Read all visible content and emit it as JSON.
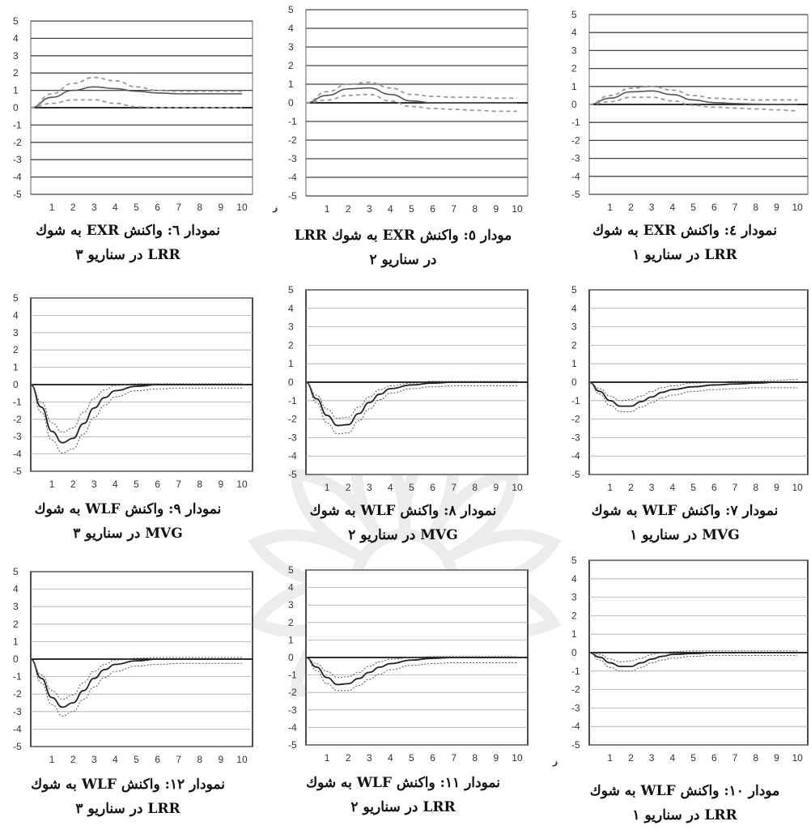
{
  "chart_data": [
    {
      "id": "p4",
      "type": "line",
      "style": "exr",
      "caption": [
        "نمودار ٤: واكنش EXR به شوك",
        "LRR در سناريو ١"
      ],
      "xticks": [
        1,
        2,
        3,
        4,
        5,
        6,
        7,
        8,
        9,
        10
      ],
      "ylim": [
        -5,
        5
      ],
      "yticks": [
        5,
        4,
        3,
        2,
        1,
        0,
        -1,
        -2,
        -3,
        -4,
        -5
      ],
      "x": [
        0,
        1,
        2,
        3,
        4,
        5,
        6,
        7,
        8,
        9,
        10
      ],
      "series": [
        {
          "role": "response",
          "values": [
            0,
            0.35,
            0.7,
            0.75,
            0.55,
            0.25,
            0.1,
            0.05,
            0.02,
            0,
            0
          ]
        },
        {
          "role": "upper",
          "values": [
            0,
            0.5,
            0.9,
            1.0,
            0.8,
            0.5,
            0.35,
            0.3,
            0.25,
            0.25,
            0.25
          ]
        },
        {
          "role": "lower",
          "values": [
            0,
            0.15,
            0.4,
            0.4,
            0.2,
            -0.05,
            -0.15,
            -0.2,
            -0.25,
            -0.3,
            -0.35
          ]
        }
      ]
    },
    {
      "id": "p5",
      "type": "line",
      "style": "exr",
      "caption": [
        "مودار ٥: واكنش EXR به شوك LRR",
        "در سناريو ٢"
      ],
      "xticks": [
        1,
        2,
        3,
        4,
        5,
        6,
        7,
        8,
        9,
        10
      ],
      "ylim": [
        -5,
        5
      ],
      "yticks": [
        5,
        4,
        3,
        2,
        1,
        0,
        -1,
        -2,
        -3,
        -4,
        -5
      ],
      "x": [
        0,
        1,
        2,
        3,
        4,
        5,
        6,
        7,
        8,
        9,
        10
      ],
      "series": [
        {
          "role": "response",
          "values": [
            0,
            0.4,
            0.75,
            0.8,
            0.45,
            0.1,
            0.0,
            0.0,
            0.0,
            0.0,
            0.0
          ]
        },
        {
          "role": "upper",
          "values": [
            0,
            0.6,
            1.0,
            1.1,
            0.8,
            0.45,
            0.35,
            0.3,
            0.3,
            0.25,
            0.25
          ]
        },
        {
          "role": "lower",
          "values": [
            0,
            0.15,
            0.4,
            0.45,
            0.1,
            -0.2,
            -0.3,
            -0.35,
            -0.4,
            -0.45,
            -0.45
          ]
        }
      ]
    },
    {
      "id": "p6",
      "type": "line",
      "style": "exr",
      "caption": [
        "نمودار ٦: واكنش EXR به شوك",
        "LRR در سناريو ٣"
      ],
      "xticks": [
        1,
        2,
        3,
        4,
        5,
        6,
        7,
        8,
        9,
        10
      ],
      "ylim": [
        -5,
        5
      ],
      "yticks": [
        5,
        4,
        3,
        2,
        1,
        0,
        -1,
        -2,
        -3,
        -4,
        -5
      ],
      "x": [
        0,
        1,
        2,
        3,
        4,
        5,
        6,
        7,
        8,
        9,
        10
      ],
      "series": [
        {
          "role": "response",
          "values": [
            0,
            0.6,
            1.0,
            1.2,
            1.1,
            0.95,
            0.85,
            0.8,
            0.8,
            0.8,
            0.8
          ]
        },
        {
          "role": "upper",
          "values": [
            0,
            0.8,
            1.4,
            1.75,
            1.55,
            1.2,
            1.0,
            0.95,
            0.95,
            0.95,
            0.95
          ]
        },
        {
          "role": "lower",
          "values": [
            0,
            0.25,
            0.45,
            0.45,
            0.25,
            0.05,
            0,
            0,
            0,
            0,
            0
          ]
        }
      ]
    },
    {
      "id": "p7",
      "type": "line",
      "style": "wlf",
      "caption": [
        "نمودار ٧: واكنش WLF به شوك",
        "MVG در سناريو ١"
      ],
      "xticks": [
        1,
        2,
        3,
        4,
        5,
        6,
        7,
        8,
        9,
        10
      ],
      "ylim": [
        -5,
        5
      ],
      "yticks": [
        5,
        4,
        3,
        2,
        1,
        0,
        -1,
        -2,
        -3,
        -4,
        -5
      ],
      "x": [
        0,
        0.5,
        1,
        1.5,
        2,
        2.5,
        3,
        3.5,
        4,
        5,
        6,
        7,
        8,
        9,
        10
      ],
      "series": [
        {
          "role": "response",
          "values": [
            0,
            -0.5,
            -1.0,
            -1.3,
            -1.3,
            -1.05,
            -0.8,
            -0.55,
            -0.4,
            -0.25,
            -0.15,
            -0.1,
            -0.05,
            0,
            0
          ]
        },
        {
          "role": "upper",
          "values": [
            0,
            -0.35,
            -0.75,
            -1.0,
            -0.95,
            -0.75,
            -0.5,
            -0.3,
            -0.2,
            -0.05,
            0,
            0.05,
            0.05,
            0.1,
            0.15
          ]
        },
        {
          "role": "lower",
          "values": [
            0,
            -0.65,
            -1.25,
            -1.6,
            -1.6,
            -1.35,
            -1.1,
            -0.85,
            -0.7,
            -0.5,
            -0.4,
            -0.35,
            -0.3,
            -0.3,
            -0.3
          ]
        }
      ]
    },
    {
      "id": "p8",
      "type": "line",
      "style": "wlf",
      "caption": [
        "نمودار ٨: واكنش WLF به شوك",
        "MVG در سناريو ٢"
      ],
      "xticks": [
        1,
        2,
        3,
        4,
        5,
        6,
        7,
        8,
        9,
        10
      ],
      "ylim": [
        -5,
        5
      ],
      "yticks": [
        5,
        4,
        3,
        2,
        1,
        0,
        -1,
        -2,
        -3,
        -4,
        -5
      ],
      "x": [
        0,
        0.5,
        1,
        1.5,
        2,
        2.5,
        3,
        3.5,
        4,
        5,
        6,
        7,
        8,
        9,
        10
      ],
      "series": [
        {
          "role": "response",
          "values": [
            0,
            -0.9,
            -1.8,
            -2.35,
            -2.3,
            -1.7,
            -1.1,
            -0.65,
            -0.35,
            -0.15,
            -0.05,
            0,
            0,
            0,
            0
          ]
        },
        {
          "role": "upper",
          "values": [
            0,
            -0.7,
            -1.45,
            -1.95,
            -1.9,
            -1.35,
            -0.8,
            -0.4,
            -0.2,
            -0.05,
            0.05,
            0.05,
            0.05,
            0.05,
            0.05
          ]
        },
        {
          "role": "lower",
          "values": [
            0,
            -1.1,
            -2.2,
            -2.8,
            -2.75,
            -2.1,
            -1.45,
            -0.95,
            -0.6,
            -0.35,
            -0.25,
            -0.2,
            -0.2,
            -0.2,
            -0.2
          ]
        }
      ]
    },
    {
      "id": "p9",
      "type": "line",
      "style": "wlf",
      "caption": [
        "نمودار ٩: واكنش WLF به شوك",
        "MVG در سناريو ٣"
      ],
      "xticks": [
        1,
        2,
        3,
        4,
        5,
        6,
        7,
        8,
        9,
        10
      ],
      "ylim": [
        -5,
        5
      ],
      "yticks": [
        5,
        4,
        3,
        2,
        1,
        0,
        -1,
        -2,
        -3,
        -4,
        -5
      ],
      "x": [
        0,
        0.5,
        1,
        1.5,
        2,
        2.5,
        3,
        3.5,
        4,
        5,
        6,
        7,
        8,
        9,
        10
      ],
      "series": [
        {
          "role": "response",
          "values": [
            0,
            -1.3,
            -2.7,
            -3.35,
            -3.1,
            -2.25,
            -1.35,
            -0.75,
            -0.35,
            -0.1,
            0,
            0,
            0,
            0,
            0
          ]
        },
        {
          "role": "upper",
          "values": [
            0,
            -1.0,
            -2.2,
            -2.75,
            -2.5,
            -1.6,
            -0.8,
            -0.3,
            -0.05,
            0.05,
            0.05,
            0.05,
            0.05,
            0.05,
            0.05
          ]
        },
        {
          "role": "lower",
          "values": [
            0,
            -1.6,
            -3.2,
            -3.95,
            -3.7,
            -2.85,
            -1.9,
            -1.2,
            -0.7,
            -0.35,
            -0.25,
            -0.2,
            -0.2,
            -0.2,
            -0.2
          ]
        }
      ]
    },
    {
      "id": "p10",
      "type": "line",
      "style": "wlf",
      "caption": [
        "مودار ١٠: واكنش WLF به شوك",
        "LRR در سناريو ١"
      ],
      "xticks": [
        1,
        2,
        3,
        4,
        5,
        6,
        7,
        8,
        9,
        10
      ],
      "ylim": [
        -5,
        5
      ],
      "yticks": [
        5,
        4,
        3,
        2,
        1,
        0,
        -1,
        -2,
        -3,
        -4,
        -5
      ],
      "x": [
        0,
        0.5,
        1,
        1.5,
        2,
        2.5,
        3,
        3.5,
        4,
        5,
        6,
        7,
        8,
        9,
        10
      ],
      "series": [
        {
          "role": "response",
          "values": [
            0,
            -0.25,
            -0.55,
            -0.75,
            -0.75,
            -0.55,
            -0.35,
            -0.2,
            -0.1,
            -0.05,
            0,
            0,
            0,
            0,
            0
          ]
        },
        {
          "role": "upper",
          "values": [
            0,
            -0.1,
            -0.35,
            -0.5,
            -0.45,
            -0.3,
            -0.1,
            0,
            0.05,
            0.1,
            0.1,
            0.1,
            0.1,
            0.1,
            0.1
          ]
        },
        {
          "role": "lower",
          "values": [
            0,
            -0.4,
            -0.8,
            -1.0,
            -1.0,
            -0.8,
            -0.55,
            -0.4,
            -0.3,
            -0.2,
            -0.15,
            -0.15,
            -0.15,
            -0.15,
            -0.15
          ]
        }
      ]
    },
    {
      "id": "p11",
      "type": "line",
      "style": "wlf",
      "caption": [
        "نمودار ١١: واكنش WLF به شوك",
        "LRR در سناريو ٢"
      ],
      "xticks": [
        1,
        2,
        3,
        4,
        5,
        6,
        7,
        8,
        9,
        10
      ],
      "ylim": [
        -5,
        5
      ],
      "yticks": [
        5,
        4,
        3,
        2,
        1,
        0,
        -1,
        -2,
        -3,
        -4,
        -5
      ],
      "x": [
        0,
        0.5,
        1,
        1.5,
        2,
        2.5,
        3,
        3.5,
        4,
        5,
        6,
        7,
        8,
        9,
        10
      ],
      "series": [
        {
          "role": "response",
          "values": [
            0,
            -0.55,
            -1.15,
            -1.55,
            -1.5,
            -1.2,
            -0.85,
            -0.55,
            -0.35,
            -0.15,
            -0.05,
            0,
            0,
            0,
            0
          ]
        },
        {
          "role": "upper",
          "values": [
            0,
            -0.35,
            -0.8,
            -1.15,
            -1.1,
            -0.85,
            -0.5,
            -0.25,
            -0.1,
            0,
            0.05,
            0.05,
            0.05,
            0.05,
            0.05
          ]
        },
        {
          "role": "lower",
          "values": [
            0,
            -0.75,
            -1.5,
            -1.9,
            -1.9,
            -1.6,
            -1.25,
            -0.95,
            -0.7,
            -0.45,
            -0.35,
            -0.3,
            -0.3,
            -0.3,
            -0.3
          ]
        }
      ]
    },
    {
      "id": "p12",
      "type": "line",
      "style": "wlf",
      "caption": [
        "نمودار ١٢: واكنش WLF به شوك",
        "LRR در سناريو ٣"
      ],
      "xticks": [
        1,
        2,
        3,
        4,
        5,
        6,
        7,
        8,
        9,
        10
      ],
      "ylim": [
        -5,
        5
      ],
      "yticks": [
        5,
        4,
        3,
        2,
        1,
        0,
        -1,
        -2,
        -3,
        -4,
        -5
      ],
      "x": [
        0,
        0.5,
        1,
        1.5,
        2,
        2.5,
        3,
        3.5,
        4,
        5,
        6,
        7,
        8,
        9,
        10
      ],
      "series": [
        {
          "role": "response",
          "values": [
            0,
            -1.1,
            -2.2,
            -2.75,
            -2.5,
            -1.8,
            -1.1,
            -0.6,
            -0.3,
            -0.1,
            0,
            0,
            0,
            0,
            0
          ]
        },
        {
          "role": "upper",
          "values": [
            0,
            -0.9,
            -1.8,
            -2.3,
            -2.05,
            -1.35,
            -0.7,
            -0.3,
            -0.05,
            0.05,
            0.1,
            0.1,
            0.1,
            0.1,
            0.1
          ]
        },
        {
          "role": "lower",
          "values": [
            0,
            -1.35,
            -2.6,
            -3.25,
            -3.0,
            -2.3,
            -1.6,
            -1.05,
            -0.7,
            -0.4,
            -0.3,
            -0.25,
            -0.25,
            -0.25,
            -0.25
          ]
        }
      ]
    }
  ],
  "stray_marks": [
    "ز",
    "ز"
  ]
}
